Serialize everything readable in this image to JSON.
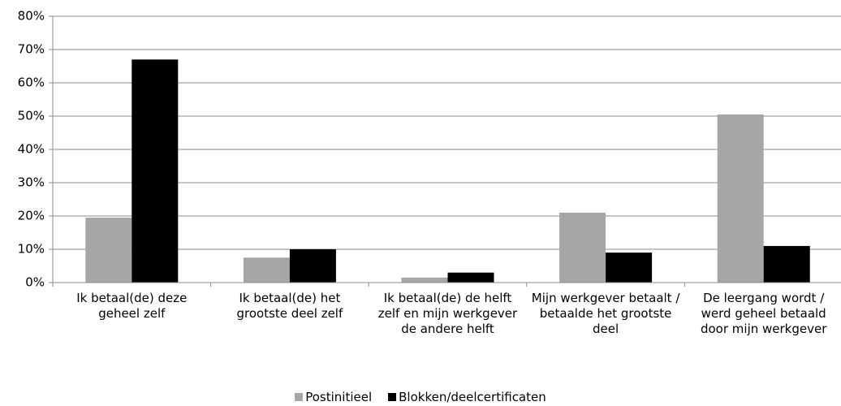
{
  "chart_data": {
    "type": "bar",
    "categories": [
      "Ik betaal(de) deze geheel zelf",
      "Ik betaal(de) het grootste deel zelf",
      "Ik betaal(de) de helft zelf en mijn werkgever de andere helft",
      "Mijn werkgever betaalt / betaalde het grootste deel",
      "De leergang wordt / werd geheel betaald door mijn werkgever"
    ],
    "series": [
      {
        "name": "Postinitieel",
        "color": "#a6a6a6",
        "values": [
          19.5,
          7.5,
          1.5,
          21,
          50.5
        ]
      },
      {
        "name": "Blokken/deelcertificaten",
        "color": "#000000",
        "values": [
          67,
          10,
          3,
          9,
          11
        ]
      }
    ],
    "ylim": [
      0,
      80
    ],
    "yticks": [
      {
        "value": 0,
        "label": "0%"
      },
      {
        "value": 10,
        "label": "10%"
      },
      {
        "value": 20,
        "label": "20%"
      },
      {
        "value": 30,
        "label": "30%"
      },
      {
        "value": 40,
        "label": "40%"
      },
      {
        "value": 50,
        "label": "50%"
      },
      {
        "value": 60,
        "label": "60%"
      },
      {
        "value": 70,
        "label": "70%"
      },
      {
        "value": 80,
        "label": "80%"
      }
    ],
    "grid": true,
    "legend": "bottom"
  }
}
